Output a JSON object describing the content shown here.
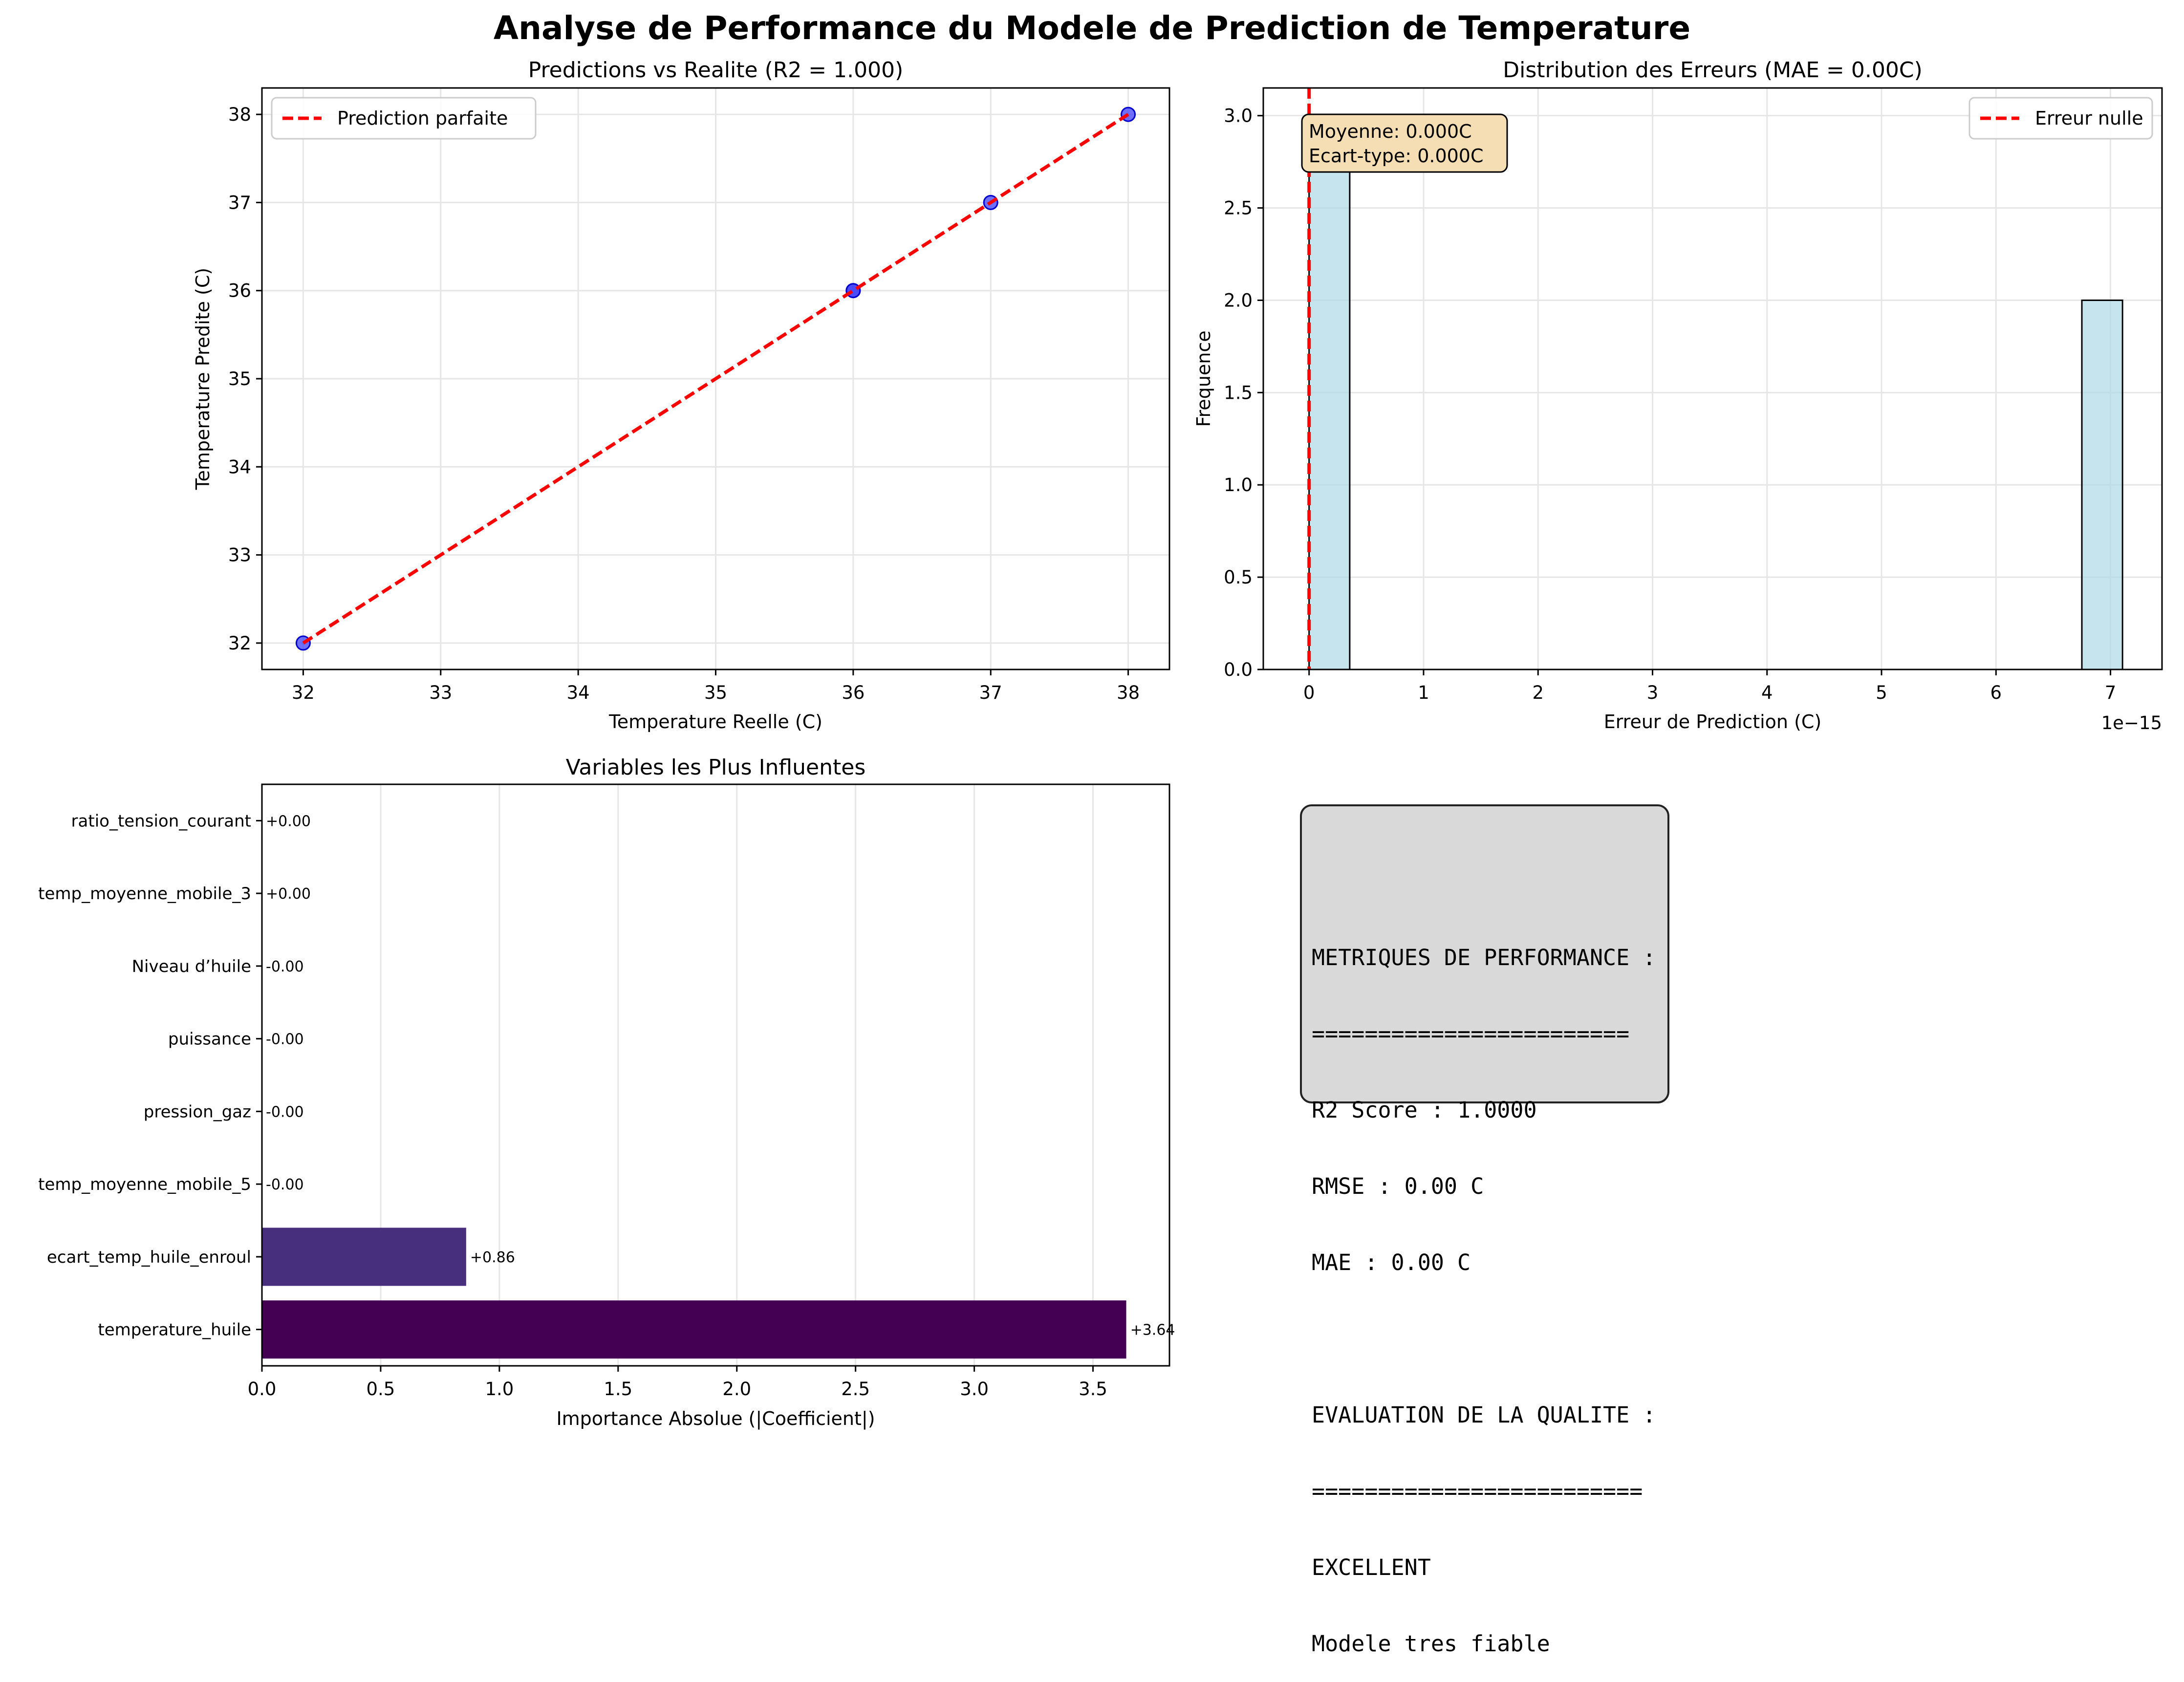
{
  "figure": {
    "title": "Analyse de Performance du Modele de Prediction de Temperature"
  },
  "colors": {
    "scatter_point": "#4040ff",
    "ideal_line": "#ff0000",
    "histogram_bar": "#add8e6",
    "stats_box": "#f5deb3",
    "metrics_box": "#d9d9d9",
    "bar_dark": "#440154",
    "bar_second": "#472f7d"
  },
  "chart_data": [
    {
      "type": "scatter",
      "title": "Predictions vs Realite (R2 = 1.000)",
      "xlabel": "Temperature Reelle (C)",
      "ylabel": "Temperature Predite (C)",
      "xlim": [
        31.7,
        38.3
      ],
      "ylim": [
        31.7,
        38.3
      ],
      "xticks": [
        32,
        33,
        34,
        35,
        36,
        37,
        38
      ],
      "yticks": [
        32,
        33,
        34,
        35,
        36,
        37,
        38
      ],
      "grid": true,
      "legend_placement": "upper-left",
      "points": [
        [
          32,
          32
        ],
        [
          36,
          36
        ],
        [
          36,
          36
        ],
        [
          37,
          37
        ],
        [
          38,
          38
        ]
      ],
      "series": [
        {
          "name": "Prediction parfaite",
          "kind": "dashed-line",
          "x": [
            32,
            38
          ],
          "y": [
            32,
            38
          ]
        }
      ]
    },
    {
      "type": "bar",
      "subtype": "histogram",
      "title": "Distribution des Erreurs (MAE = 0.00C)",
      "xlabel": "Erreur de Prediction (C)",
      "ylabel": "Frequence",
      "x_offset_text": "1e−15",
      "xlim": [
        -0.4,
        7.45
      ],
      "ylim": [
        0,
        3.15
      ],
      "xticks": [
        0,
        1,
        2,
        3,
        4,
        5,
        6,
        7
      ],
      "yticks": [
        0.0,
        0.5,
        1.0,
        1.5,
        2.0,
        2.5,
        3.0
      ],
      "ytick_labels": [
        "0.0",
        "0.5",
        "1.0",
        "1.5",
        "2.0",
        "2.5",
        "3.0"
      ],
      "grid": true,
      "legend_placement": "upper-right",
      "bins": [
        {
          "x0": 0.0,
          "x1": 0.355,
          "count": 3
        },
        {
          "x0": 6.75,
          "x1": 7.105,
          "count": 2
        }
      ],
      "series": [
        {
          "name": "Erreur nulle",
          "kind": "dashed-vline",
          "x": 0
        }
      ],
      "annotation": [
        "Moyenne: 0.000C",
        "Ecart-type: 0.000C"
      ]
    },
    {
      "type": "bar",
      "orientation": "horizontal",
      "title": "Variables les Plus Influentes",
      "xlabel": "Importance Absolue (|Coefficient|)",
      "xlim": [
        0,
        3.822
      ],
      "xticks": [
        0.0,
        0.5,
        1.0,
        1.5,
        2.0,
        2.5,
        3.0,
        3.5
      ],
      "xtick_labels": [
        "0.0",
        "0.5",
        "1.0",
        "1.5",
        "2.0",
        "2.5",
        "3.0",
        "3.5"
      ],
      "grid": true,
      "categories": [
        "temperature_huile",
        "ecart_temp_huile_enroul",
        "temp_moyenne_mobile_5",
        "pression_gaz",
        "puissance",
        "Niveau d’huile",
        "temp_moyenne_mobile_3",
        "ratio_tension_courant"
      ],
      "values": [
        3.64,
        0.86,
        0.0,
        0.0,
        0.0,
        0.0,
        0.0,
        0.0
      ],
      "value_labels": [
        "+3.64",
        "+0.86",
        "-0.00",
        "-0.00",
        "-0.00",
        "-0.00",
        "+0.00",
        "+0.00"
      ],
      "bar_colors": [
        "#440154",
        "#472f7d",
        "#3b518b",
        "#2c718e",
        "#21908d",
        "#27ad81",
        "#5cc863",
        "#aadc32"
      ]
    }
  ],
  "metrics_panel": {
    "lines": [
      "",
      "METRIQUES DE PERFORMANCE :",
      "========================",
      "R2 Score : 1.0000",
      "RMSE : 0.00 C",
      "MAE : 0.00 C",
      "",
      "EVALUATION DE LA QUALITE :",
      "=========================",
      "EXCELLENT",
      "Modele tres fiable"
    ]
  }
}
